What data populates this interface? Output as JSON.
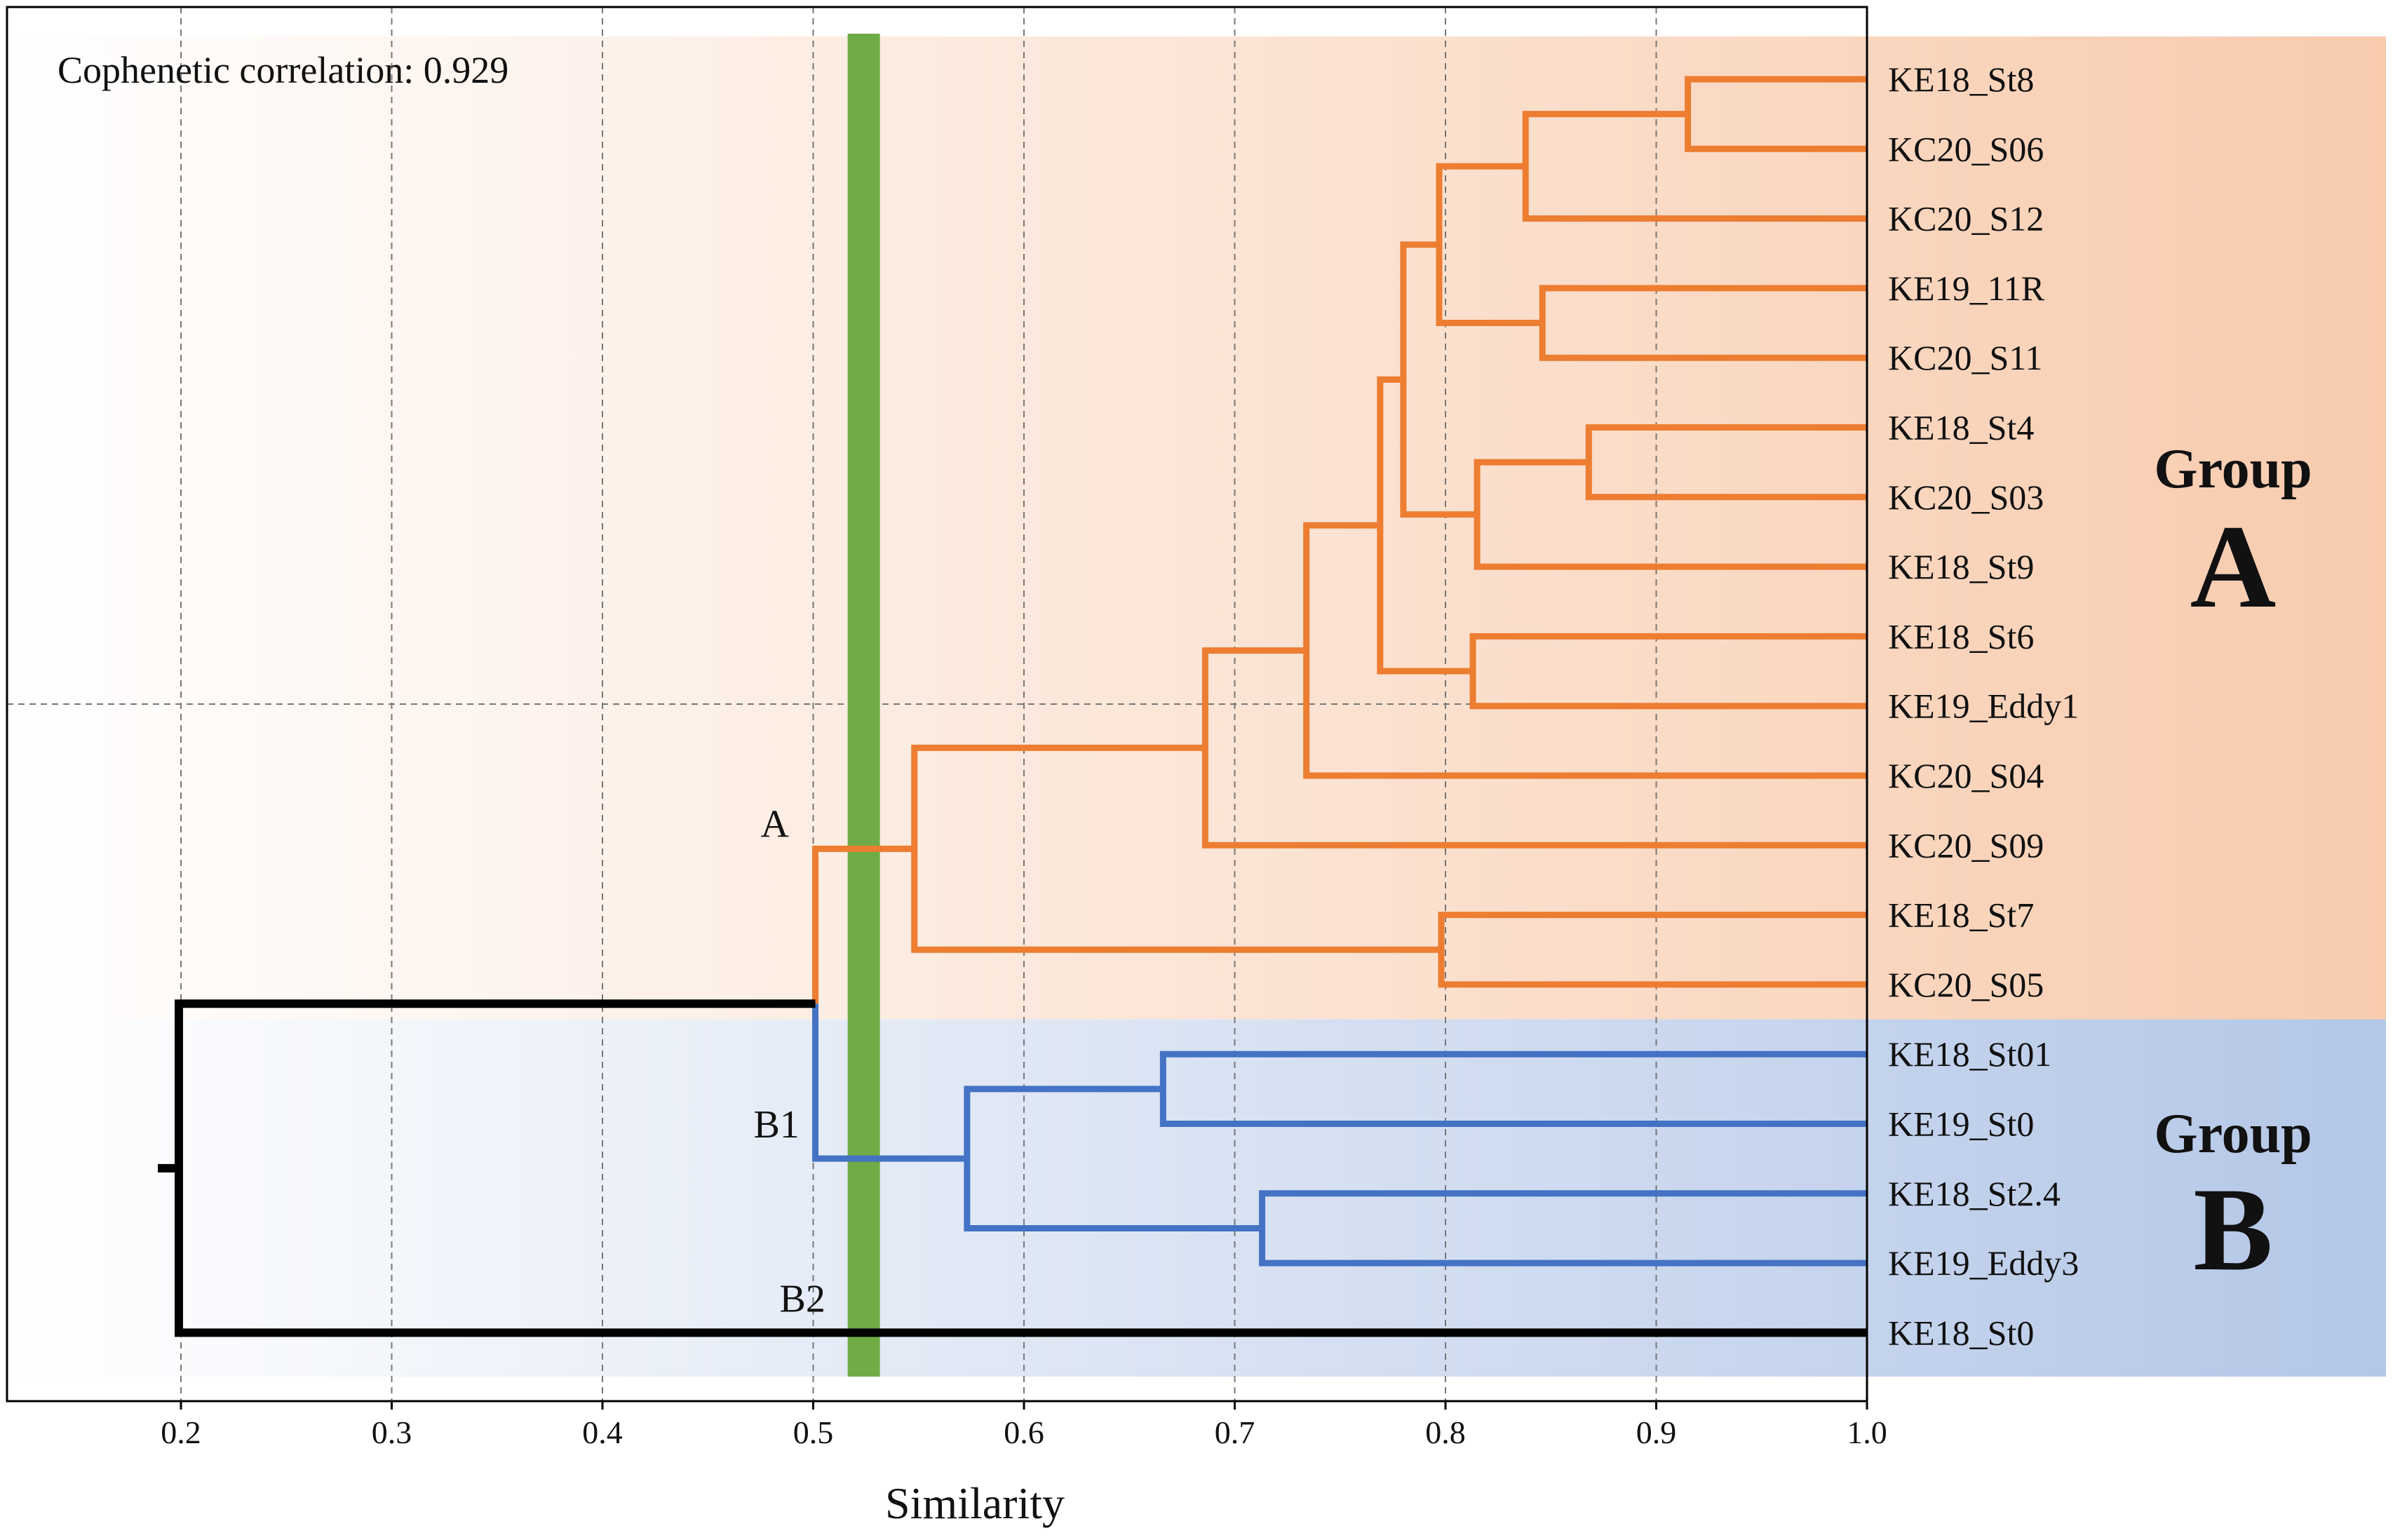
{
  "chart_data": {
    "type": "dendrogram",
    "xlabel": "Similarity",
    "xlim": [
      0.15,
      1.0
    ],
    "xticks": [
      0.2,
      0.3,
      0.4,
      0.5,
      0.6,
      0.7,
      0.8,
      0.9,
      1.0
    ],
    "xtick_labels": [
      "0.2",
      "0.3",
      "0.4",
      "0.5",
      "0.6",
      "0.7",
      "0.8",
      "0.9",
      "1.0"
    ],
    "annotation": "Cophenetic correlation: 0.929",
    "cut_line": {
      "similarity": 0.524,
      "color": "#6fac46"
    },
    "colors": {
      "groupA": "#ed7d31",
      "groupB": "#4472c4",
      "outgroup": "#000000",
      "bandA": "#f8cbad",
      "bandB": "#b4c7e7"
    },
    "groups": [
      {
        "word": "Group",
        "letter": "A",
        "first_leaf": 0,
        "last_leaf": 13
      },
      {
        "word": "Group",
        "letter": "B",
        "first_leaf": 14,
        "last_leaf": 18
      }
    ],
    "leaves": [
      "KE18_St8",
      "KC20_S06",
      "KC20_S12",
      "KE19_11R",
      "KC20_S11",
      "KE18_St4",
      "KC20_S03",
      "KE18_St9",
      "KE18_St6",
      "KE19_Eddy1",
      "KC20_S04",
      "KC20_S09",
      "KE18_St7",
      "KC20_S05",
      "KE18_St01",
      "KE19_St0",
      "KE18_St2.4",
      "KE19_Eddy3",
      "KE18_St0"
    ],
    "merges": [
      {
        "id": "n1",
        "children": [
          "L0",
          "L1"
        ],
        "similarity": 0.915,
        "color": "groupA"
      },
      {
        "id": "n2",
        "children": [
          "n1",
          "L2"
        ],
        "similarity": 0.838,
        "color": "groupA"
      },
      {
        "id": "n3",
        "children": [
          "L3",
          "L4"
        ],
        "similarity": 0.846,
        "color": "groupA"
      },
      {
        "id": "n4",
        "children": [
          "n2",
          "n3"
        ],
        "similarity": 0.797,
        "color": "groupA"
      },
      {
        "id": "n5",
        "children": [
          "L5",
          "L6"
        ],
        "similarity": 0.868,
        "color": "groupA"
      },
      {
        "id": "n6",
        "children": [
          "n5",
          "L7"
        ],
        "similarity": 0.815,
        "color": "groupA"
      },
      {
        "id": "n7",
        "children": [
          "n4",
          "n6"
        ],
        "similarity": 0.78,
        "color": "groupA"
      },
      {
        "id": "n8",
        "children": [
          "L8",
          "L9"
        ],
        "similarity": 0.813,
        "color": "groupA"
      },
      {
        "id": "n9",
        "children": [
          "n7",
          "n8"
        ],
        "similarity": 0.769,
        "color": "groupA"
      },
      {
        "id": "n10",
        "children": [
          "n9",
          "L10"
        ],
        "similarity": 0.734,
        "color": "groupA"
      },
      {
        "id": "n11",
        "children": [
          "n10",
          "L11"
        ],
        "similarity": 0.686,
        "color": "groupA"
      },
      {
        "id": "n12",
        "children": [
          "L12",
          "L13"
        ],
        "similarity": 0.798,
        "color": "groupA"
      },
      {
        "id": "n13",
        "children": [
          "n11",
          "n12"
        ],
        "similarity": 0.548,
        "color": "groupA"
      },
      {
        "id": "n14",
        "children": [
          "L14",
          "L15"
        ],
        "similarity": 0.666,
        "color": "groupB"
      },
      {
        "id": "n15",
        "children": [
          "L16",
          "L17"
        ],
        "similarity": 0.713,
        "color": "groupB"
      },
      {
        "id": "n16",
        "children": [
          "n14",
          "n15"
        ],
        "similarity": 0.573,
        "color": "groupB"
      },
      {
        "id": "n17",
        "children": [
          "n13",
          "n16"
        ],
        "similarity": 0.501,
        "color": "mixed"
      },
      {
        "id": "n18",
        "children": [
          "n17",
          "L18"
        ],
        "similarity": 0.199,
        "color": "outgroup"
      }
    ],
    "cluster_labels": [
      {
        "text": "A",
        "node": "n13"
      },
      {
        "text": "B1",
        "node": "n16"
      },
      {
        "text": "B2",
        "leaf": 18
      }
    ]
  }
}
